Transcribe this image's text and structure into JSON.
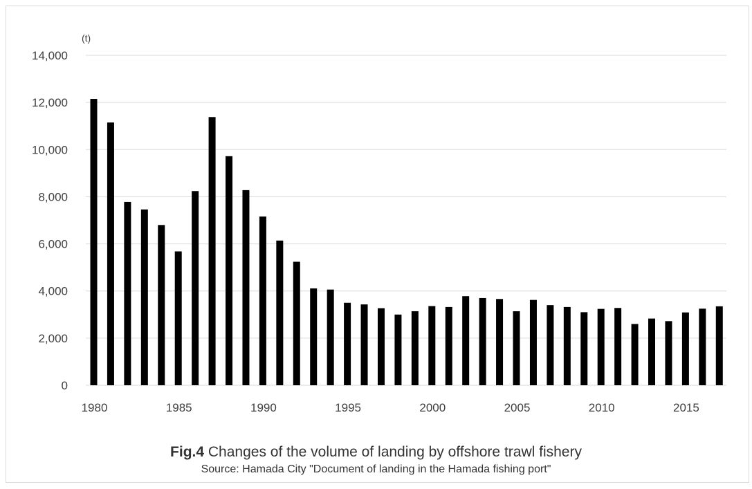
{
  "chart_data": {
    "type": "bar",
    "unit_label": "(t)",
    "ylim": [
      0,
      14000
    ],
    "yticks": [
      {
        "value": 0,
        "label": "0"
      },
      {
        "value": 2000,
        "label": "2,000"
      },
      {
        "value": 4000,
        "label": "4,000"
      },
      {
        "value": 6000,
        "label": "6,000"
      },
      {
        "value": 8000,
        "label": "8,000"
      },
      {
        "value": 10000,
        "label": "10,000"
      },
      {
        "value": 12000,
        "label": "12,000"
      },
      {
        "value": 14000,
        "label": "14,000"
      }
    ],
    "x_tick_labels": [
      "1980",
      "1985",
      "1990",
      "1995",
      "2000",
      "2005",
      "2010",
      "2015"
    ],
    "categories": [
      1980,
      1981,
      1982,
      1983,
      1984,
      1985,
      1986,
      1987,
      1988,
      1989,
      1990,
      1991,
      1992,
      1993,
      1994,
      1995,
      1996,
      1997,
      1998,
      1999,
      2000,
      2001,
      2002,
      2003,
      2004,
      2005,
      2006,
      2007,
      2008,
      2009,
      2010,
      2011,
      2012,
      2013,
      2014,
      2015,
      2016,
      2017
    ],
    "values": [
      12150,
      11150,
      7780,
      7460,
      6800,
      5680,
      8240,
      11380,
      9720,
      8280,
      7160,
      6140,
      5240,
      4110,
      4060,
      3500,
      3430,
      3270,
      3000,
      3140,
      3360,
      3320,
      3780,
      3700,
      3660,
      3140,
      3620,
      3400,
      3320,
      3100,
      3240,
      3280,
      2600,
      2830,
      2720,
      3090,
      3250,
      3350
    ],
    "grid": true,
    "legend": "none"
  },
  "caption": {
    "fig_label": "Fig.4",
    "title": " Changes of the volume of landing by offshore trawl fishery",
    "source": "Source: Hamada City \"Document of landing in the Hamada fishing port\""
  }
}
